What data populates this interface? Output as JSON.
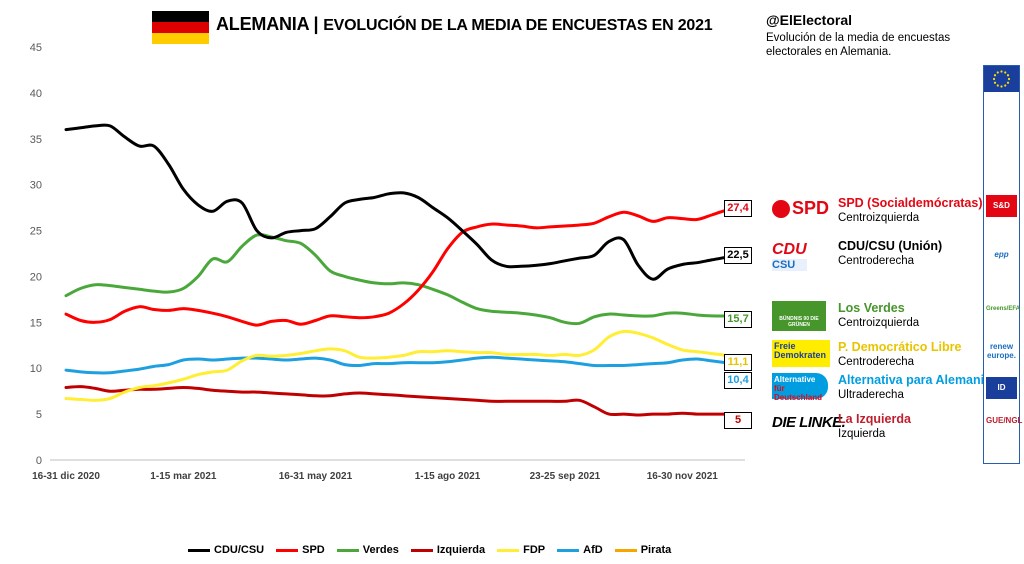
{
  "header": {
    "title_main": "ALEMANIA",
    "title_sep": "|",
    "title_sub": "EVOLUCIÓN DE LA MEDIA DE ENCUESTAS EN 2021",
    "handle": "@ElElectoral",
    "description": "Evolución de la media de encuestas electorales en Alemania."
  },
  "flag_colors": [
    "#000000",
    "#dd0000",
    "#ffcc00"
  ],
  "parties": [
    {
      "key": "spd",
      "logo": "SPD",
      "name": "SPD (Socialdemócratas)",
      "ideology": "Centroizquierda",
      "color": "#e30613",
      "group": "S&D"
    },
    {
      "key": "cdu",
      "logo": "CDU CSU",
      "name": "CDU/CSU (Unión)",
      "ideology": "Centroderecha",
      "color": "#000000",
      "group": "epp"
    },
    {
      "key": "gruene",
      "logo": "BÜNDNIS 90 DIE GRÜNEN",
      "name": "Los Verdes",
      "ideology": "Centroizquierda",
      "color": "#46962b",
      "group": "Greens/EFA"
    },
    {
      "key": "fdp",
      "logo": "Freie Demokraten FDP",
      "name": "P. Democrático Libre",
      "ideology": "Centroderecha",
      "color": "#ffed00",
      "group": "renew europe."
    },
    {
      "key": "afd",
      "logo": "Alternative für Deutschland",
      "name": "Alternativa para Alemania",
      "ideology": "Ultraderecha",
      "color": "#009ee0",
      "group": "ID"
    },
    {
      "key": "linke",
      "logo": "DIE LINKE.",
      "name": "La Izquierda",
      "ideology": "Izquierda",
      "color": "#be1e2d",
      "group": "GUE/NGL"
    }
  ],
  "chart_data": {
    "type": "line",
    "title": "EVOLUCIÓN DE LA MEDIA DE ENCUESTAS EN 2021",
    "x_tick_labels": [
      "16-31 dic 2020",
      "1-15 mar 2021",
      "16-31 may 2021",
      "1-15 ago 2021",
      "23-25 sep 2021",
      "16-30 nov 2021"
    ],
    "x_tick_index": [
      0,
      8,
      17,
      26,
      34,
      42
    ],
    "x_count": 47,
    "ylim": [
      0,
      45
    ],
    "y_ticks": [
      0,
      5,
      10,
      15,
      20,
      25,
      30,
      35,
      40,
      45
    ],
    "grid": false,
    "legend_position": "bottom",
    "series": [
      {
        "name": "CDU/CSU",
        "color": "#000000",
        "end_label": "22,5",
        "values": [
          36,
          36.2,
          36.4,
          36.4,
          35.2,
          34.2,
          34.2,
          32.2,
          29.5,
          27.8,
          27.1,
          28.2,
          28,
          25,
          24.2,
          24.8,
          25,
          25.2,
          26.5,
          28,
          28.4,
          28.6,
          29,
          29.1,
          28.6,
          27.5,
          26.4,
          25,
          23.5,
          21.8,
          21.1,
          21.1,
          21.2,
          21.4,
          21.7,
          22,
          22.3,
          23.8,
          24,
          21.2,
          19.7,
          20.8,
          21.3,
          21.5,
          21.8,
          22.1,
          22.5
        ]
      },
      {
        "name": "SPD",
        "color": "#ff0000",
        "end_label": "27,4",
        "values": [
          15.9,
          15.2,
          15,
          15.3,
          16.2,
          16.7,
          16.4,
          16.3,
          16.5,
          16.3,
          16,
          15.6,
          15.1,
          14.7,
          15.1,
          15.2,
          14.8,
          15.2,
          15.7,
          15.6,
          15.5,
          15.6,
          16,
          17,
          18.5,
          20.5,
          23,
          24.8,
          25.4,
          25.7,
          25.6,
          25.5,
          25.3,
          25.4,
          25.5,
          25.6,
          25.8,
          26.5,
          27,
          26.6,
          26,
          26.4,
          26.3,
          26.2,
          26.7,
          27.2,
          27.4
        ]
      },
      {
        "name": "Verdes",
        "color": "#4aa83a",
        "end_label": "15,7",
        "values": [
          17.9,
          18.7,
          19.1,
          19,
          18.8,
          18.6,
          18.4,
          18.3,
          18.7,
          20,
          21.9,
          21.6,
          23.3,
          24.5,
          24.3,
          23.9,
          23.6,
          22.3,
          20.6,
          20,
          19.6,
          19.3,
          19.2,
          19.3,
          19.1,
          18.6,
          18,
          17.2,
          16.5,
          16.2,
          16.1,
          16,
          15.8,
          15.5,
          15,
          14.9,
          15.6,
          15.9,
          15.8,
          15.7,
          15.7,
          16,
          16,
          15.8,
          15.7,
          15.7,
          15.7
        ]
      },
      {
        "name": "Izquierda",
        "color": "#c00000",
        "end_label": "5",
        "values": [
          7.9,
          8,
          7.8,
          7.5,
          7.6,
          7.7,
          7.7,
          7.8,
          7.9,
          7.8,
          7.6,
          7.5,
          7.4,
          7.4,
          7.3,
          7.2,
          7.1,
          7,
          7,
          7.2,
          7.3,
          7.2,
          7.1,
          7,
          6.9,
          6.8,
          6.7,
          6.6,
          6.5,
          6.4,
          6.4,
          6.4,
          6.4,
          6.4,
          6.4,
          6.5,
          5.8,
          5,
          5,
          4.9,
          5,
          5,
          5.1,
          5,
          5,
          5,
          5
        ]
      },
      {
        "name": "FDP",
        "color": "#ffee33",
        "end_label": "11,1",
        "values": [
          6.7,
          6.6,
          6.5,
          6.7,
          7.4,
          7.9,
          8.1,
          8.4,
          8.8,
          9.3,
          9.6,
          9.8,
          10.8,
          11.4,
          11.3,
          11.4,
          11.6,
          11.9,
          12.1,
          11.9,
          11.2,
          11.1,
          11.2,
          11.4,
          11.8,
          11.8,
          11.9,
          11.8,
          11.7,
          11.7,
          11.5,
          11.5,
          11.5,
          11.4,
          11.5,
          11.4,
          12,
          13.4,
          14,
          13.8,
          13.3,
          12.6,
          12,
          11.8,
          11.6,
          11.4,
          11.1
        ]
      },
      {
        "name": "AfD",
        "color": "#1ea0e0",
        "end_label": "10,4",
        "values": [
          9.8,
          9.6,
          9.5,
          9.5,
          9.7,
          9.9,
          10.2,
          10.4,
          10.9,
          11,
          10.9,
          11,
          11.1,
          11.1,
          11,
          10.9,
          11,
          11.1,
          10.9,
          10.4,
          10.3,
          10.5,
          10.5,
          10.6,
          10.6,
          10.6,
          10.7,
          10.9,
          11.1,
          11.2,
          11.1,
          11,
          10.9,
          10.8,
          10.7,
          10.5,
          10.3,
          10.3,
          10.3,
          10.4,
          10.5,
          10.6,
          10.9,
          11,
          10.8,
          10.6,
          10.4
        ]
      },
      {
        "name": "Pirata",
        "color": "#f7a600",
        "end_label": "",
        "values": []
      }
    ]
  }
}
